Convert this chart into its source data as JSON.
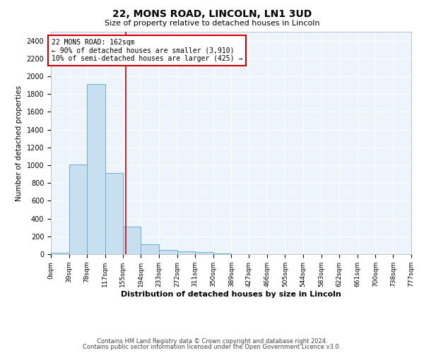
{
  "title1": "22, MONS ROAD, LINCOLN, LN1 3UD",
  "title2": "Size of property relative to detached houses in Lincoln",
  "xlabel": "Distribution of detached houses by size in Lincoln",
  "ylabel": "Number of detached properties",
  "bin_labels": [
    "0sqm",
    "39sqm",
    "78sqm",
    "117sqm",
    "155sqm",
    "194sqm",
    "233sqm",
    "272sqm",
    "311sqm",
    "350sqm",
    "389sqm",
    "427sqm",
    "466sqm",
    "505sqm",
    "544sqm",
    "583sqm",
    "622sqm",
    "661sqm",
    "700sqm",
    "738sqm",
    "777sqm"
  ],
  "bin_edges": [
    0,
    39,
    78,
    117,
    155,
    194,
    233,
    272,
    311,
    350,
    389,
    427,
    466,
    505,
    544,
    583,
    622,
    661,
    700,
    738,
    777
  ],
  "bar_values": [
    15,
    1010,
    1910,
    910,
    310,
    110,
    50,
    30,
    20,
    8,
    0,
    0,
    0,
    0,
    0,
    0,
    0,
    0,
    0,
    0
  ],
  "bar_color": "#c8dff0",
  "bar_edge_color": "#6aafd6",
  "red_line_x": 162,
  "red_line_color": "#cc0000",
  "annotation_title": "22 MONS ROAD: 162sqm",
  "annotation_line2": "← 90% of detached houses are smaller (3,910)",
  "annotation_line3": "10% of semi-detached houses are larger (425) →",
  "annotation_box_color": "#ffffff",
  "annotation_box_edge": "#cc0000",
  "ylim": [
    0,
    2500
  ],
  "yticks": [
    0,
    200,
    400,
    600,
    800,
    1000,
    1200,
    1400,
    1600,
    1800,
    2000,
    2200,
    2400
  ],
  "footnote1": "Contains HM Land Registry data © Crown copyright and database right 2024.",
  "footnote2": "Contains public sector information licensed under the Open Government Licence v3.0.",
  "bg_color": "#ffffff",
  "plot_bg_color": "#edf4fb"
}
